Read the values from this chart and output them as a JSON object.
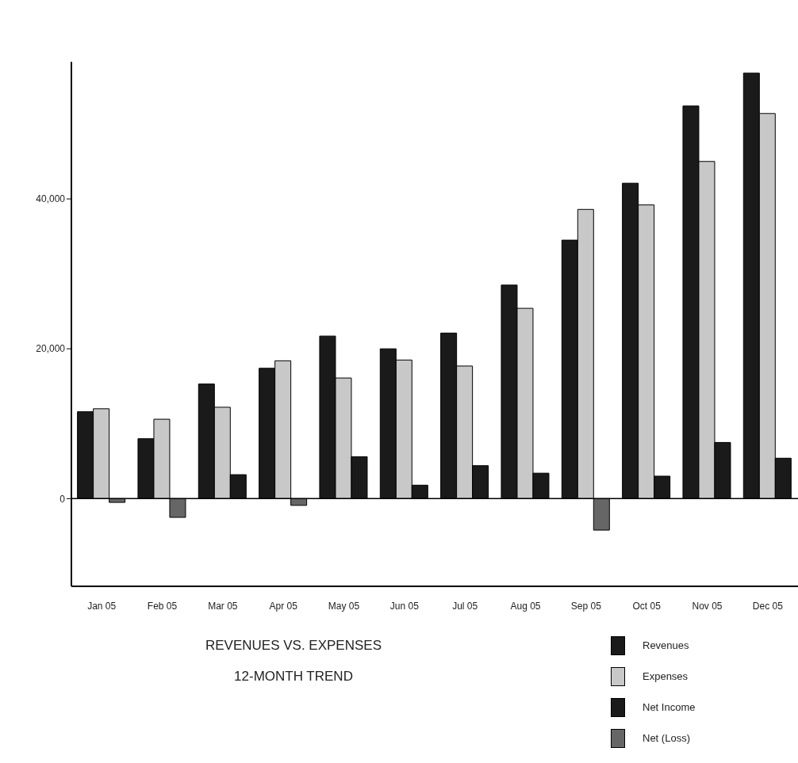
{
  "chart_data": {
    "type": "bar",
    "title": "REVENUES VS. EXPENSES",
    "subtitle": "12-MONTH TREND",
    "categories": [
      "Jan 05",
      "Feb 05",
      "Mar 05",
      "Apr 05",
      "May 05",
      "Jun 05",
      "Jul 05",
      "Aug 05",
      "Sep 05",
      "Oct 05",
      "Nov 05",
      "Dec 05"
    ],
    "series": [
      {
        "name": "Revenues",
        "color": "#1a1a1a",
        "values": [
          11600,
          8000,
          15300,
          17400,
          21700,
          20000,
          22100,
          28500,
          34500,
          42100,
          52400,
          56800
        ]
      },
      {
        "name": "Expenses",
        "color": "#c8c8c8",
        "values": [
          12000,
          10600,
          12200,
          18400,
          16100,
          18500,
          17700,
          25400,
          38600,
          39200,
          45000,
          51400
        ]
      },
      {
        "name": "Net Income",
        "color": "#1a1a1a",
        "values": [
          null,
          null,
          3200,
          null,
          5600,
          1800,
          4400,
          3400,
          null,
          3000,
          7500,
          5400
        ]
      },
      {
        "name": "Net (Loss)",
        "color": "#666666",
        "values": [
          -500,
          -2500,
          null,
          -900,
          null,
          null,
          null,
          null,
          -4200,
          null,
          null,
          null
        ]
      }
    ],
    "ylim": [
      -11700,
      58300
    ],
    "yticks": [
      0,
      {
        "value": 20000,
        "label": "20,000"
      },
      {
        "value": 40000,
        "label": "40,000"
      }
    ],
    "ref_lines": [
      {
        "axis": "y",
        "value": 0
      }
    ],
    "grid": false,
    "legend": "bottom right"
  }
}
